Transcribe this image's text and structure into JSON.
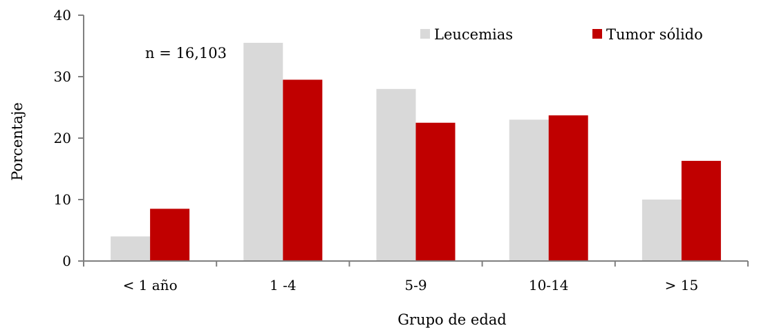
{
  "chart_data": {
    "type": "bar",
    "categories": [
      "< 1 año",
      "1 -4",
      "5-9",
      "10-14",
      "> 15"
    ],
    "series": [
      {
        "name": "Leucemias",
        "values": [
          4,
          35.5,
          28,
          23,
          10
        ],
        "color": "#d9d9d9"
      },
      {
        "name": "Tumor sólido",
        "values": [
          8.5,
          29.5,
          22.5,
          23.7,
          16.3
        ],
        "color": "#c00000"
      }
    ],
    "xlabel": "Grupo de edad",
    "ylabel": "Porcentaje",
    "ylim": [
      0,
      40
    ],
    "yticks": [
      "0",
      "10",
      "20",
      "30",
      "40"
    ],
    "annotation": "n = 16,103",
    "grid": false,
    "legend_position": "top-right"
  }
}
